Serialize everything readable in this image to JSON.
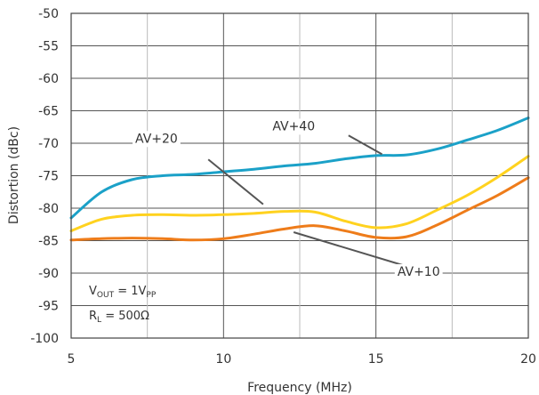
{
  "chart_data": {
    "type": "line",
    "title": "",
    "xlabel": "Frequency (MHz)",
    "ylabel": "Distortion (dBc)",
    "xlim": [
      5,
      20
    ],
    "ylim": [
      -100,
      -50
    ],
    "xticks": [
      5,
      10,
      15,
      20
    ],
    "yticks": [
      -100,
      -95,
      -90,
      -85,
      -80,
      -75,
      -70,
      -65,
      -60,
      -55,
      -50
    ],
    "grid": true,
    "series": [
      {
        "name": "AV+40",
        "color": "#1ba1c8",
        "x": [
          5,
          6,
          7,
          8,
          9,
          10,
          11,
          12,
          13,
          14,
          15,
          16,
          17,
          18,
          19,
          20
        ],
        "y": [
          -81.5,
          -77.5,
          -75.6,
          -75.0,
          -74.8,
          -74.4,
          -74.0,
          -73.5,
          -73.1,
          -72.4,
          -71.9,
          -71.8,
          -70.9,
          -69.5,
          -68.0,
          -66.1
        ]
      },
      {
        "name": "AV+20",
        "color": "#ffd21f",
        "x": [
          5,
          6,
          7,
          8,
          9,
          10,
          11,
          12,
          13,
          14,
          15,
          16,
          17,
          18,
          19,
          20
        ],
        "y": [
          -83.5,
          -81.7,
          -81.1,
          -81.0,
          -81.1,
          -81.0,
          -80.8,
          -80.5,
          -80.6,
          -82.0,
          -83.0,
          -82.4,
          -80.3,
          -78.0,
          -75.2,
          -72.0
        ]
      },
      {
        "name": "AV+10",
        "color": "#ee7c1a",
        "x": [
          5,
          6,
          7,
          8,
          9,
          10,
          11,
          12,
          13,
          14,
          15,
          16,
          17,
          18,
          19,
          20
        ],
        "y": [
          -84.9,
          -84.7,
          -84.6,
          -84.7,
          -84.9,
          -84.7,
          -84.0,
          -83.2,
          -82.7,
          -83.5,
          -84.5,
          -84.4,
          -82.6,
          -80.3,
          -78.0,
          -75.3
        ]
      }
    ],
    "annotations": [
      {
        "label": "AV+40",
        "series": "AV+40"
      },
      {
        "label": "AV+20",
        "series": "AV+20"
      },
      {
        "label": "AV+10",
        "series": "AV+10"
      }
    ],
    "notes": {
      "line1_main": "V",
      "line1_sub": "OUT",
      "line1_mid": " = 1V",
      "line1_sub2": "PP",
      "line2_main": "R",
      "line2_sub": "L",
      "line2_rest": " = 500Ω"
    }
  }
}
